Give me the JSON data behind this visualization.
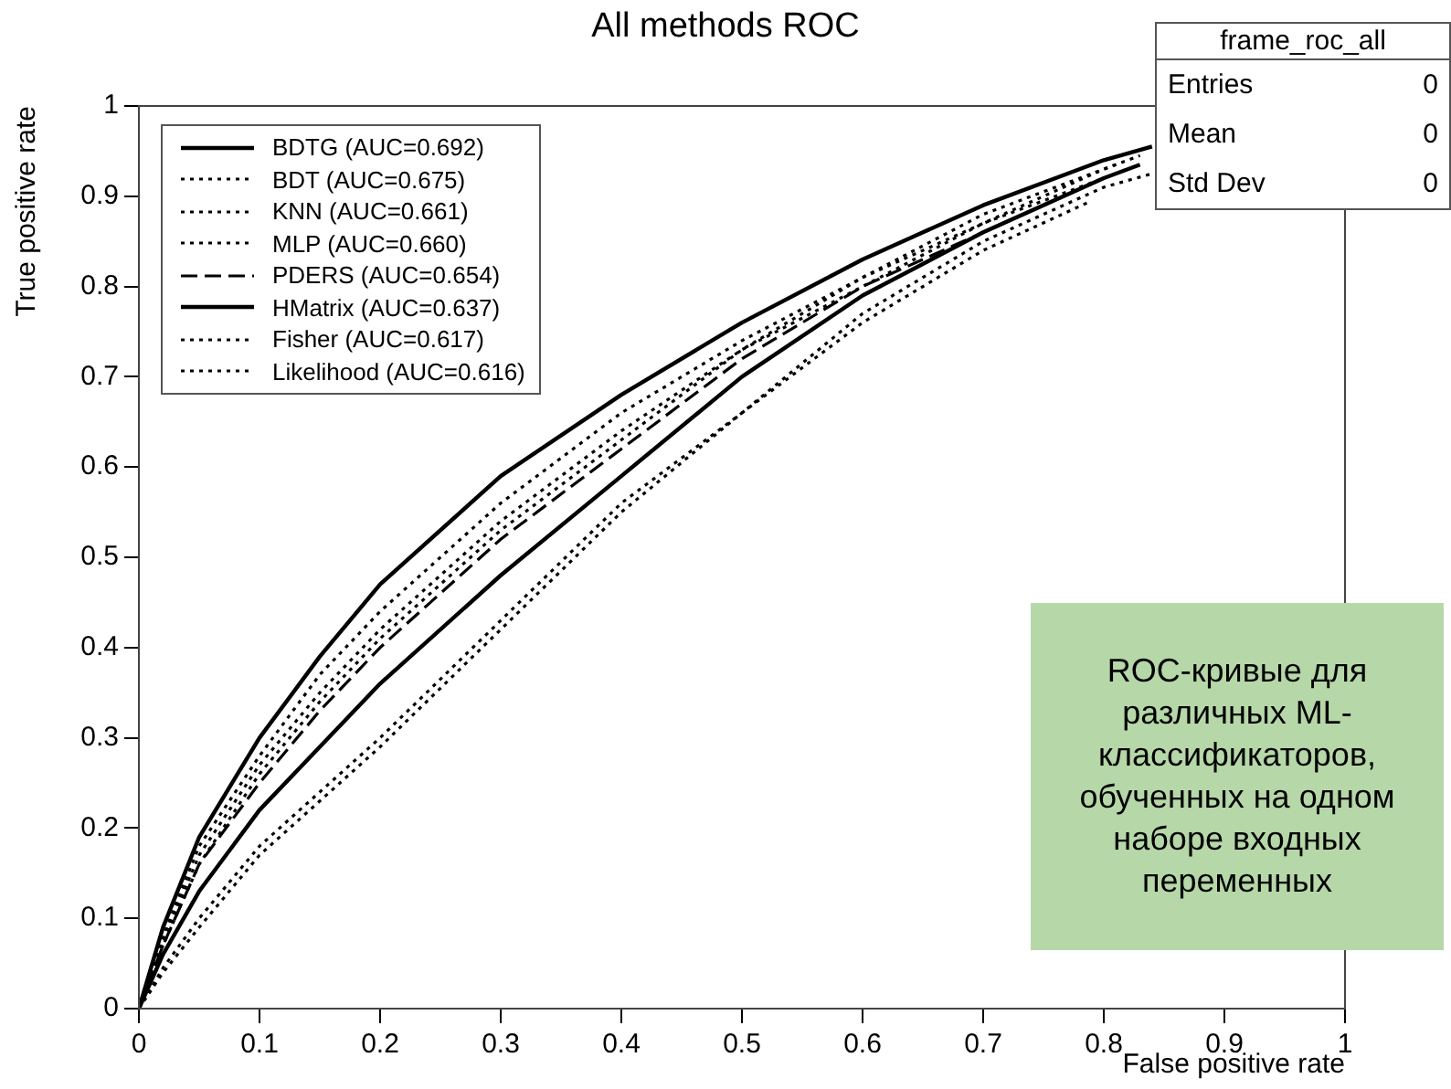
{
  "chart_data": {
    "type": "line",
    "title": "All methods ROC",
    "xlabel": "False positive rate",
    "ylabel": "True positive rate",
    "series": [
      {
        "name": "BDTG (AUC=0.692)",
        "color": "#000000",
        "line_style": "solid",
        "x": [
          0,
          0.02,
          0.05,
          0.1,
          0.15,
          0.2,
          0.3,
          0.4,
          0.5,
          0.6,
          0.7,
          0.8,
          0.84
        ],
        "values": [
          0,
          0.09,
          0.19,
          0.3,
          0.39,
          0.47,
          0.59,
          0.68,
          0.76,
          0.83,
          0.89,
          0.94,
          0.955
        ]
      },
      {
        "name": "BDT (AUC=0.675)",
        "color": "#000000",
        "line_style": "dotted",
        "x": [
          0,
          0.02,
          0.05,
          0.1,
          0.15,
          0.2,
          0.3,
          0.4,
          0.5,
          0.6,
          0.7,
          0.8,
          0.83
        ],
        "values": [
          0,
          0.08,
          0.18,
          0.28,
          0.37,
          0.44,
          0.56,
          0.66,
          0.74,
          0.81,
          0.87,
          0.93,
          0.945
        ]
      },
      {
        "name": "KNN (AUC=0.661)",
        "color": "#000000",
        "line_style": "dotted",
        "x": [
          0,
          0.02,
          0.05,
          0.1,
          0.15,
          0.2,
          0.3,
          0.4,
          0.5,
          0.6,
          0.7,
          0.8,
          0.82
        ],
        "values": [
          0,
          0.075,
          0.17,
          0.27,
          0.35,
          0.42,
          0.54,
          0.64,
          0.73,
          0.8,
          0.87,
          0.92,
          0.93
        ]
      },
      {
        "name": "MLP (AUC=0.660)",
        "color": "#000000",
        "line_style": "dotted",
        "x": [
          0,
          0.02,
          0.05,
          0.1,
          0.15,
          0.2,
          0.3,
          0.4,
          0.5,
          0.6,
          0.7,
          0.81
        ],
        "values": [
          0,
          0.07,
          0.16,
          0.26,
          0.34,
          0.41,
          0.53,
          0.63,
          0.73,
          0.81,
          0.88,
          0.935
        ]
      },
      {
        "name": "PDERS (AUC=0.654)",
        "color": "#000000",
        "line_style": "dashed",
        "x": [
          0,
          0.02,
          0.05,
          0.1,
          0.15,
          0.2,
          0.3,
          0.4,
          0.5,
          0.6,
          0.7,
          0.8
        ],
        "values": [
          0,
          0.07,
          0.16,
          0.25,
          0.33,
          0.4,
          0.52,
          0.62,
          0.72,
          0.8,
          0.86,
          0.92
        ]
      },
      {
        "name": "HMatrix (AUC=0.637)",
        "color": "#000000",
        "line_style": "solid",
        "x": [
          0,
          0.02,
          0.05,
          0.1,
          0.15,
          0.2,
          0.3,
          0.4,
          0.5,
          0.6,
          0.7,
          0.8,
          0.83
        ],
        "values": [
          0,
          0.06,
          0.13,
          0.22,
          0.29,
          0.36,
          0.48,
          0.59,
          0.7,
          0.79,
          0.86,
          0.92,
          0.935
        ]
      },
      {
        "name": "Fisher (AUC=0.617)",
        "color": "#000000",
        "line_style": "dotted",
        "x": [
          0,
          0.02,
          0.05,
          0.1,
          0.15,
          0.2,
          0.3,
          0.4,
          0.5,
          0.6,
          0.7,
          0.8,
          0.84
        ],
        "values": [
          0,
          0.045,
          0.1,
          0.18,
          0.24,
          0.3,
          0.43,
          0.56,
          0.66,
          0.77,
          0.85,
          0.91,
          0.925
        ]
      },
      {
        "name": "Likelihood (AUC=0.616)",
        "color": "#000000",
        "line_style": "dotted",
        "x": [
          0,
          0.02,
          0.05,
          0.1,
          0.15,
          0.2,
          0.3,
          0.4,
          0.5,
          0.6,
          0.7,
          0.79
        ],
        "values": [
          0,
          0.04,
          0.09,
          0.17,
          0.23,
          0.29,
          0.42,
          0.55,
          0.66,
          0.76,
          0.84,
          0.895
        ]
      }
    ],
    "xlim": [
      0,
      1
    ],
    "xticks": [
      0,
      0.1,
      0.2,
      0.3,
      0.4,
      0.5,
      0.6,
      0.7,
      0.8,
      0.9,
      1
    ],
    "ylim": [
      0,
      1
    ],
    "yticks": [
      0,
      0.1,
      0.2,
      0.3,
      0.4,
      0.5,
      0.6,
      0.7,
      0.8,
      0.9,
      1
    ],
    "grid": false,
    "legend": "top left",
    "marker": "none",
    "annotations": [
      "frame_roc_all",
      "Entries 0",
      "Mean 0",
      "Std Dev 0",
      "ROC-кривые для различных ML-классификаторов, обученных на одном наборе входных переменных"
    ]
  }
}
